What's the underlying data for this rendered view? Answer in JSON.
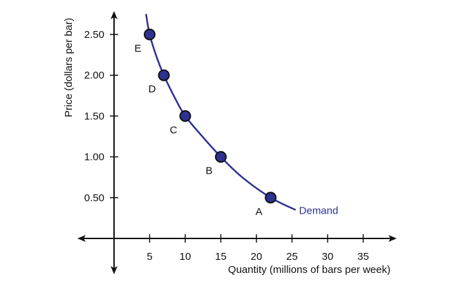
{
  "chart_data": {
    "type": "line",
    "xlabel": "Quantity (millions of bars per week)",
    "ylabel": "Price (dollars per bar)",
    "x_ticks": [
      "5",
      "10",
      "15",
      "20",
      "25",
      "30",
      "35"
    ],
    "y_ticks": [
      "0.50",
      "1.00",
      "1.50",
      "2.00",
      "2.50"
    ],
    "xlim": [
      0,
      37
    ],
    "ylim": [
      0,
      2.75
    ],
    "grid": false,
    "series": [
      {
        "name": "Demand",
        "color": "#2e3192",
        "curve_x": [
          4.5,
          5,
          6,
          7,
          8.5,
          10,
          12.5,
          15,
          18,
          22,
          25.5
        ],
        "curve_y": [
          2.75,
          2.5,
          2.22,
          2.0,
          1.73,
          1.5,
          1.24,
          1.0,
          0.75,
          0.5,
          0.35
        ]
      }
    ],
    "points": [
      {
        "label": "A",
        "x": 22,
        "y": 0.5
      },
      {
        "label": "B",
        "x": 15,
        "y": 1.0
      },
      {
        "label": "C",
        "x": 10,
        "y": 1.5
      },
      {
        "label": "D",
        "x": 7,
        "y": 2.0
      },
      {
        "label": "E",
        "x": 5,
        "y": 2.5
      }
    ],
    "colors": {
      "curve": "#2e3192",
      "point_fill": "#2e3192",
      "point_stroke": "#111111",
      "axis": "#111111"
    }
  }
}
